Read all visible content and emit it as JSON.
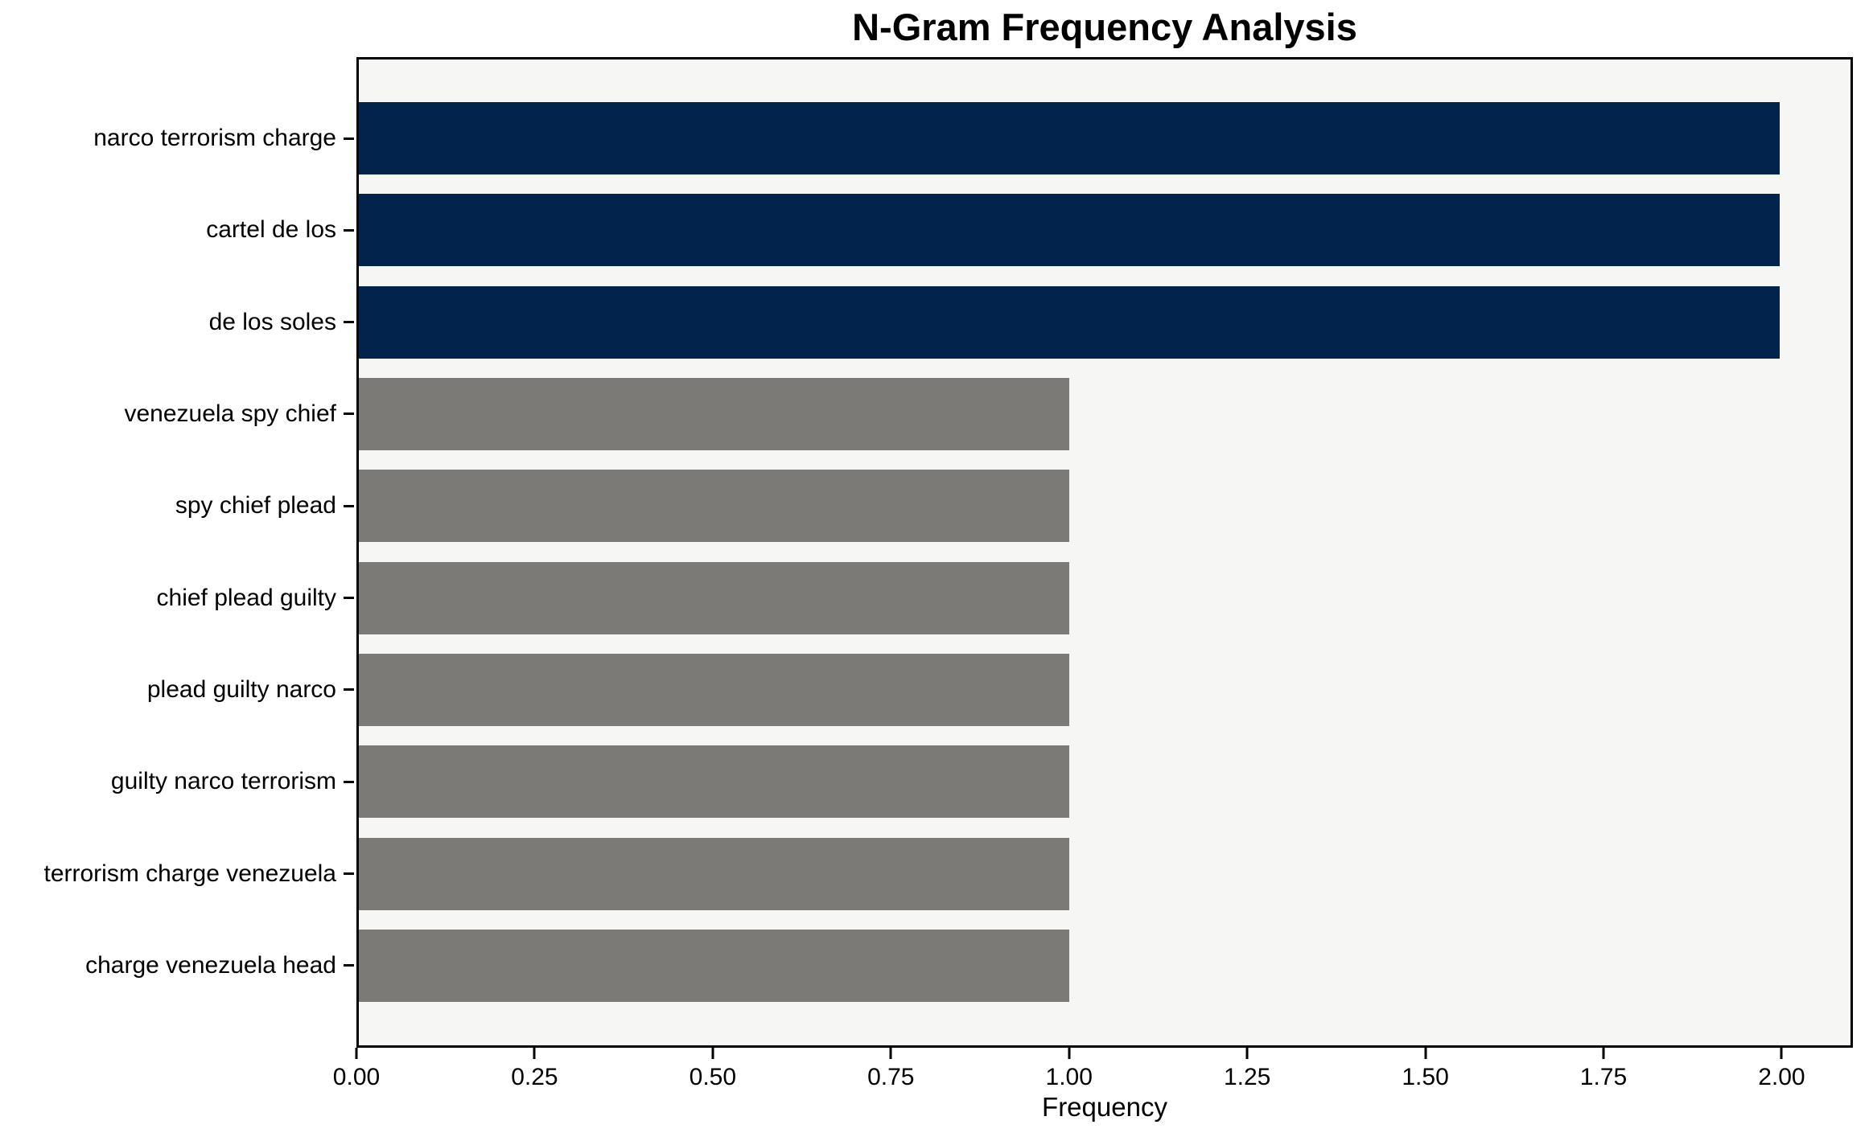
{
  "chart_data": {
    "type": "bar",
    "orientation": "horizontal",
    "title": "N-Gram Frequency Analysis",
    "xlabel": "Frequency",
    "ylabel": "",
    "categories": [
      "narco terrorism charge",
      "cartel de los",
      "de los soles",
      "venezuela spy chief",
      "spy chief plead",
      "chief plead guilty",
      "plead guilty narco",
      "guilty narco terrorism",
      "terrorism charge venezuela",
      "charge venezuela head"
    ],
    "values": [
      2,
      2,
      2,
      1,
      1,
      1,
      1,
      1,
      1,
      1
    ],
    "bar_colors": [
      "#02234c",
      "#02234c",
      "#02234c",
      "#7b7a76",
      "#7b7a76",
      "#7b7a76",
      "#7b7a76",
      "#7b7a76",
      "#7b7a76",
      "#7b7a76"
    ],
    "xlim": [
      0,
      2.1
    ],
    "xticks": [
      0,
      0.25,
      0.5,
      0.75,
      1.0,
      1.25,
      1.5,
      1.75,
      2.0
    ],
    "xtick_labels": [
      "0.00",
      "0.25",
      "0.50",
      "0.75",
      "1.00",
      "1.25",
      "1.50",
      "1.75",
      "2.00"
    ],
    "grid": false,
    "legend": false,
    "plot_background": "#f6f6f4",
    "figure_background": "#ffffff",
    "highlight_color": "#02234c",
    "default_color": "#7b7a76",
    "axis_color": "#000000"
  }
}
